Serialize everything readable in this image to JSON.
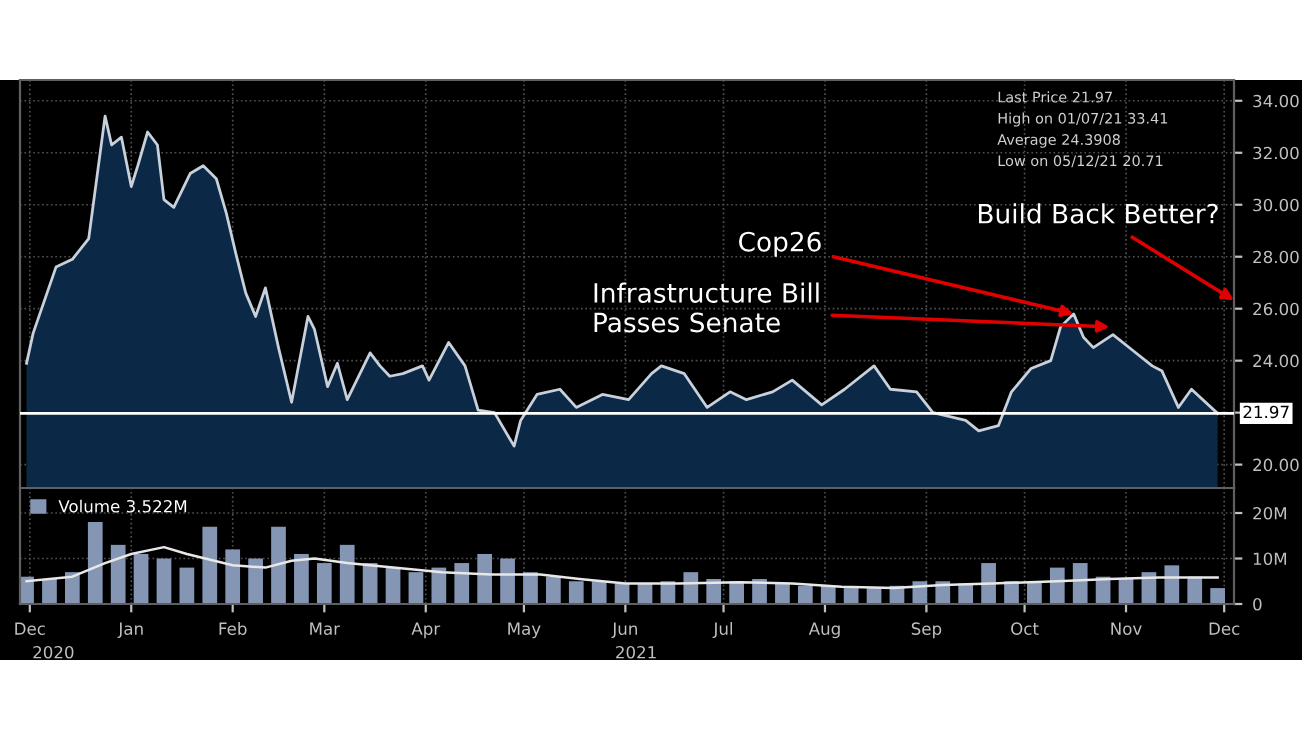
{
  "chart_data": [
    {
      "type": "area",
      "x": [
        "2020-12-14",
        "2020-12-16",
        "2020-12-23",
        "2020-12-28",
        "2021-01-02",
        "2021-01-07",
        "2021-01-09",
        "2021-01-12",
        "2021-01-15",
        "2021-01-17",
        "2021-01-20",
        "2021-01-23",
        "2021-01-25",
        "2021-01-28",
        "2021-02-02",
        "2021-02-06",
        "2021-02-10",
        "2021-02-13",
        "2021-02-16",
        "2021-02-19",
        "2021-02-22",
        "2021-02-25",
        "2021-03-01",
        "2021-03-05",
        "2021-03-10",
        "2021-03-12",
        "2021-03-16",
        "2021-03-19",
        "2021-03-22",
        "2021-03-29",
        "2021-04-01",
        "2021-04-04",
        "2021-04-08",
        "2021-04-14",
        "2021-04-16",
        "2021-04-22",
        "2021-04-27",
        "2021-05-01",
        "2021-05-06",
        "2021-05-12",
        "2021-05-14",
        "2021-05-19",
        "2021-05-26",
        "2021-05-31",
        "2021-06-08",
        "2021-06-16",
        "2021-06-23",
        "2021-06-26",
        "2021-07-03",
        "2021-07-10",
        "2021-07-17",
        "2021-07-22",
        "2021-07-30",
        "2021-08-05",
        "2021-08-14",
        "2021-08-21",
        "2021-08-30",
        "2021-09-04",
        "2021-09-12",
        "2021-09-17",
        "2021-09-27",
        "2021-10-01",
        "2021-10-07",
        "2021-10-11",
        "2021-10-17",
        "2021-10-23",
        "2021-10-26",
        "2021-10-30",
        "2021-11-02",
        "2021-11-05",
        "2021-11-11",
        "2021-11-17",
        "2021-11-23",
        "2021-11-26",
        "2021-12-01",
        "2021-12-05",
        "2021-12-13"
      ],
      "series": [
        {
          "color": "#0b2847",
          "values": [
            23.9,
            25.05,
            27.6,
            27.9,
            28.7,
            33.41,
            32.3,
            32.6,
            30.7,
            31.5,
            32.8,
            32.3,
            30.2,
            29.9,
            31.2,
            31.5,
            31.0,
            29.7,
            28.1,
            26.6,
            25.7,
            26.8,
            24.5,
            22.4,
            25.7,
            25.2,
            23.0,
            23.9,
            22.5,
            24.3,
            23.8,
            23.4,
            23.5,
            23.8,
            23.25,
            24.7,
            23.8,
            22.1,
            22.0,
            20.71,
            21.7,
            22.7,
            22.9,
            22.2,
            22.7,
            22.5,
            23.5,
            23.8,
            23.5,
            22.2,
            22.8,
            22.5,
            22.8,
            23.25,
            22.3,
            22.9,
            23.8,
            22.9,
            22.8,
            22.0,
            21.7,
            21.3,
            21.5,
            22.8,
            23.7,
            24.0,
            25.3,
            25.8,
            24.9,
            24.5,
            25.0,
            24.4,
            23.8,
            23.6,
            22.2,
            22.9,
            21.97
          ]
        }
      ],
      "xlim": [
        "2020-12-12",
        "2021-12-18"
      ],
      "xticks": [
        {
          "value": "2020-12-15",
          "label": null
        },
        {
          "value": "2021-01-15",
          "label": null
        },
        {
          "value": "2021-02-15",
          "label": null
        },
        {
          "value": "2021-03-15",
          "label": null
        },
        {
          "value": "2021-04-15",
          "label": null
        },
        {
          "value": "2021-05-15",
          "label": null
        },
        {
          "value": "2021-06-15",
          "label": null
        },
        {
          "value": "2021-07-15",
          "label": null
        },
        {
          "value": "2021-08-15",
          "label": null
        },
        {
          "value": "2021-09-15",
          "label": null
        },
        {
          "value": "2021-10-15",
          "label": null
        },
        {
          "value": "2021-11-15",
          "label": null
        },
        {
          "value": "2021-12-15",
          "label": null
        }
      ],
      "ylim": [
        19.1,
        34.8
      ],
      "yticks": [
        {
          "value": 20,
          "label": "20.00"
        },
        {
          "value": 22,
          "label": null
        },
        {
          "value": 24,
          "label": "24.00"
        },
        {
          "value": 26,
          "label": "26.00"
        },
        {
          "value": 28,
          "label": "28.00"
        },
        {
          "value": 30,
          "label": "30.00"
        },
        {
          "value": 32,
          "label": "32.00"
        },
        {
          "value": 34,
          "label": "34.00"
        }
      ],
      "tick_labels": "y",
      "grid": true,
      "ref_lines": [
        {
          "axis": "y",
          "value": 21.97,
          "label": "21.97",
          "color": "#ffffff"
        }
      ],
      "annotations": [
        "Last Price 21.97",
        "High on 01/07/21 33.41",
        "Average 24.3908",
        "Low on 05/12/21 20.71",
        {
          "text": "Cop26",
          "x": "2021-10-30",
          "y": 25.8
        },
        {
          "text": "Infrastructure Bill\nPasses Senate",
          "x": "2021-11-10",
          "y": 25.3
        },
        "Build Back Better?"
      ]
    },
    {
      "type": "bar",
      "x": [
        "2020-12-14",
        "2020-12-21",
        "2020-12-28",
        "2021-01-04",
        "2021-01-11",
        "2021-01-18",
        "2021-01-25",
        "2021-02-01",
        "2021-02-08",
        "2021-02-15",
        "2021-02-22",
        "2021-03-01",
        "2021-03-08",
        "2021-03-15",
        "2021-03-22",
        "2021-03-29",
        "2021-04-05",
        "2021-04-12",
        "2021-04-19",
        "2021-04-26",
        "2021-05-03",
        "2021-05-10",
        "2021-05-17",
        "2021-05-24",
        "2021-05-31",
        "2021-06-07",
        "2021-06-14",
        "2021-06-21",
        "2021-06-28",
        "2021-07-05",
        "2021-07-12",
        "2021-07-19",
        "2021-07-26",
        "2021-08-02",
        "2021-08-09",
        "2021-08-16",
        "2021-08-23",
        "2021-08-30",
        "2021-09-06",
        "2021-09-13",
        "2021-09-20",
        "2021-09-27",
        "2021-10-04",
        "2021-10-11",
        "2021-10-18",
        "2021-10-25",
        "2021-11-01",
        "2021-11-08",
        "2021-11-15",
        "2021-11-22",
        "2021-11-29",
        "2021-12-06",
        "2021-12-13"
      ],
      "series": [
        {
          "name": "Volume 3.522M",
          "color": "#8596b4",
          "values": [
            6,
            5.5,
            7,
            18,
            13,
            11,
            10,
            8,
            17,
            12,
            10,
            17,
            11,
            9,
            13,
            9,
            8,
            7,
            8,
            9,
            11,
            10,
            7,
            6,
            5,
            5,
            4.5,
            4.5,
            5,
            7,
            5.5,
            5,
            5.5,
            4.5,
            4,
            4,
            3.5,
            3.5,
            4,
            5,
            5,
            4.5,
            9,
            5,
            5,
            8,
            9,
            6,
            5.5,
            7,
            8.5,
            6,
            3.5
          ]
        },
        {
          "type": "line",
          "color": "#e8e8e8",
          "x": [
            "2020-12-14",
            "2020-12-28",
            "2021-01-07",
            "2021-01-15",
            "2021-01-25",
            "2021-02-01",
            "2021-02-15",
            "2021-02-25",
            "2021-03-05",
            "2021-03-12",
            "2021-03-22",
            "2021-04-05",
            "2021-04-20",
            "2021-05-05",
            "2021-05-20",
            "2021-06-01",
            "2021-06-15",
            "2021-07-01",
            "2021-07-20",
            "2021-08-05",
            "2021-08-20",
            "2021-09-05",
            "2021-09-20",
            "2021-10-05",
            "2021-10-25",
            "2021-11-10",
            "2021-11-25",
            "2021-12-13"
          ],
          "values": [
            5,
            6,
            9,
            11,
            12.5,
            11,
            8.5,
            8,
            9.5,
            10,
            9,
            8,
            7,
            6.5,
            6.5,
            5.5,
            4.5,
            4.5,
            4.8,
            4.5,
            3.8,
            3.5,
            4.2,
            4.5,
            5,
            5.5,
            5.8,
            5.8
          ]
        }
      ],
      "xlim": [
        "2020-12-12",
        "2021-12-18"
      ],
      "xticks": [
        {
          "value": "2020-12-15",
          "label": "Dec"
        },
        {
          "value": "2021-01-15",
          "label": "Jan"
        },
        {
          "value": "2021-02-15",
          "label": "Feb"
        },
        {
          "value": "2021-03-15",
          "label": "Mar"
        },
        {
          "value": "2021-04-15",
          "label": "Apr"
        },
        {
          "value": "2021-05-15",
          "label": "May"
        },
        {
          "value": "2021-06-15",
          "label": "Jun"
        },
        {
          "value": "2021-07-15",
          "label": "Jul"
        },
        {
          "value": "2021-08-15",
          "label": "Aug"
        },
        {
          "value": "2021-09-15",
          "label": "Sep"
        },
        {
          "value": "2021-10-15",
          "label": "Oct"
        },
        {
          "value": "2021-11-15",
          "label": "Nov"
        },
        {
          "value": "2021-12-15",
          "label": "Dec"
        }
      ],
      "ylim": [
        0,
        25.5
      ],
      "yticks": [
        0,
        {
          "value": 10,
          "label": "10M"
        },
        {
          "value": 20,
          "label": "20M"
        }
      ],
      "grid": true,
      "legend": "top left",
      "annotations": [
        "2020",
        "2021"
      ]
    }
  ]
}
